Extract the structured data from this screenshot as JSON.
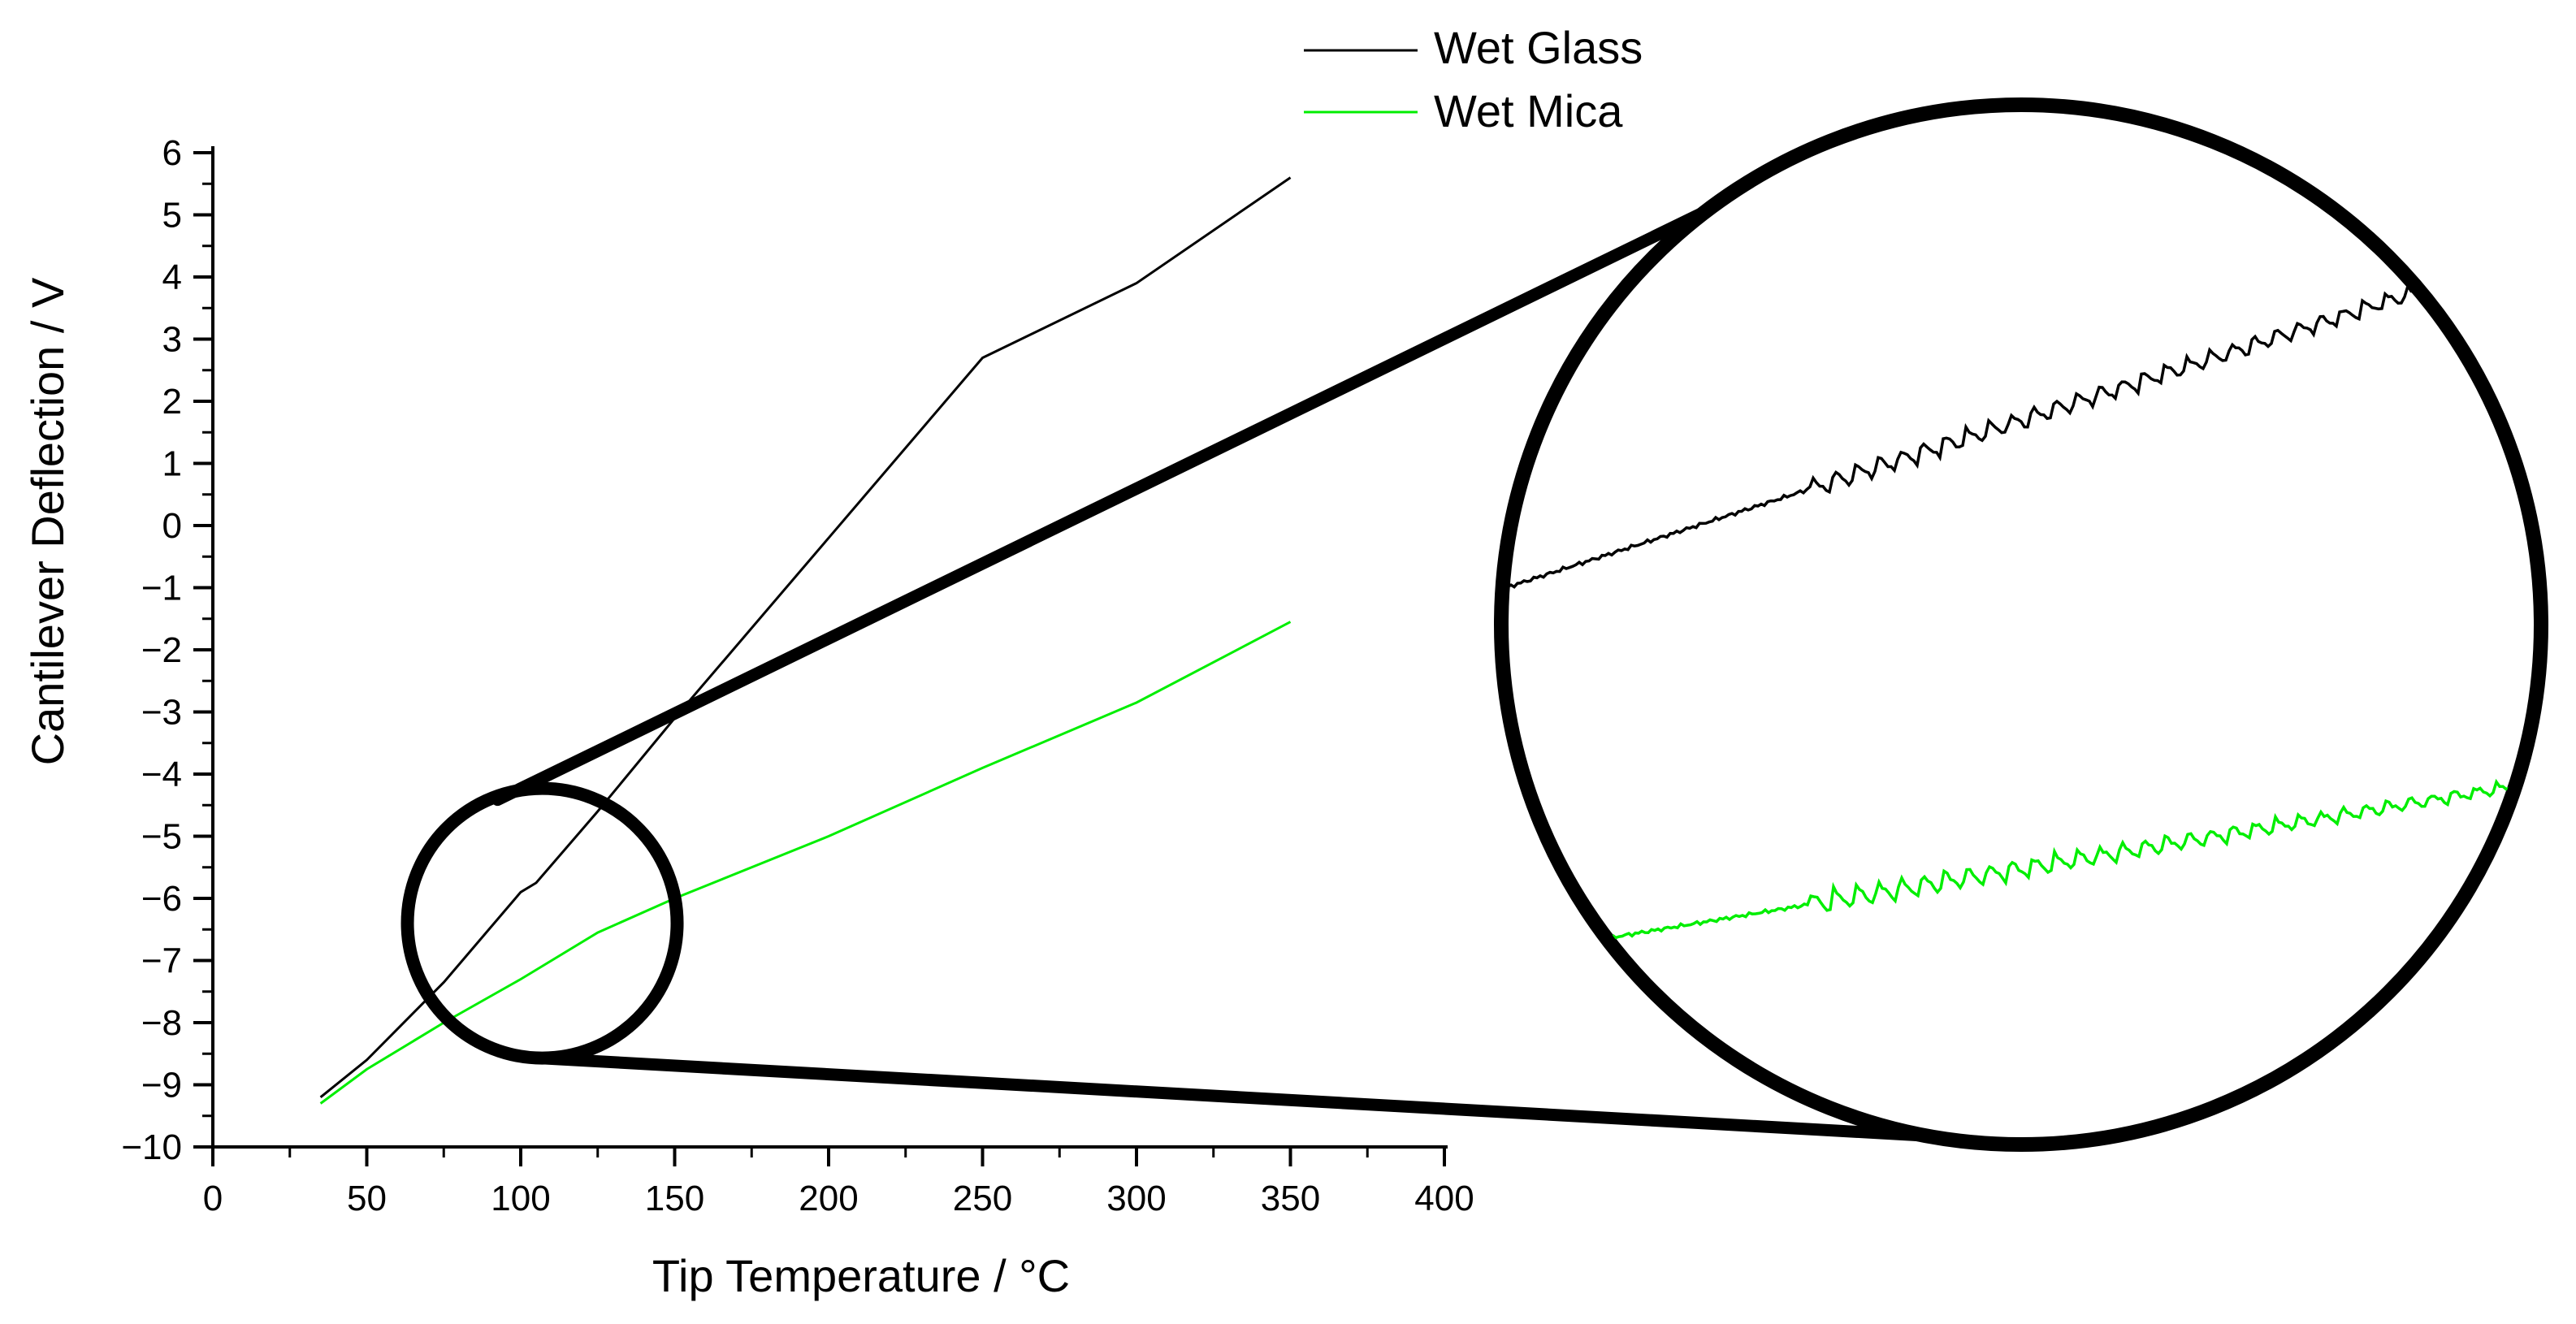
{
  "chart_data": {
    "type": "line",
    "xlabel": "Tip Temperature / °C",
    "ylabel": "Cantilever Deflection / V",
    "xlim": [
      0,
      400
    ],
    "ylim": [
      -10,
      6
    ],
    "xticks": [
      0,
      50,
      100,
      150,
      200,
      250,
      300,
      350,
      400
    ],
    "xtick_labels": [
      "0",
      "50",
      "100",
      "150",
      "200",
      "250",
      "300",
      "350",
      "400"
    ],
    "yticks": [
      -10,
      -9,
      -8,
      -7,
      -6,
      -5,
      -4,
      -3,
      -2,
      -1,
      0,
      1,
      2,
      3,
      4,
      5,
      6
    ],
    "ytick_labels": [
      "−10",
      "−9",
      "−8",
      "−7",
      "−6",
      "−5",
      "−4",
      "−3",
      "−2",
      "−1",
      "0",
      "1",
      "2",
      "3",
      "4",
      "5",
      "6"
    ],
    "grid": false,
    "legend_position": "top-center",
    "series": [
      {
        "name": "Wet Glass",
        "color": "#000000",
        "x": [
          35,
          50,
          75,
          100,
          105,
          125,
          150,
          200,
          250,
          300,
          350
        ],
        "y": [
          -9.2,
          -8.6,
          -7.35,
          -5.9,
          -5.75,
          -4.6,
          -3.1,
          -0.2,
          2.7,
          3.9,
          5.6
        ]
      },
      {
        "name": "Wet Mica",
        "color": "#00ee00",
        "x": [
          35,
          50,
          75,
          100,
          105,
          125,
          150,
          200,
          250,
          300,
          350
        ],
        "y": [
          -9.3,
          -8.75,
          -8.0,
          -7.3,
          -7.15,
          -6.55,
          -6.0,
          -5.0,
          -3.9,
          -2.85,
          -1.55
        ]
      }
    ],
    "zoom_inset": {
      "source_center": [
        107,
        -6.4
      ],
      "description_series": [
        "Wet Glass",
        "Wet Mica"
      ]
    }
  }
}
